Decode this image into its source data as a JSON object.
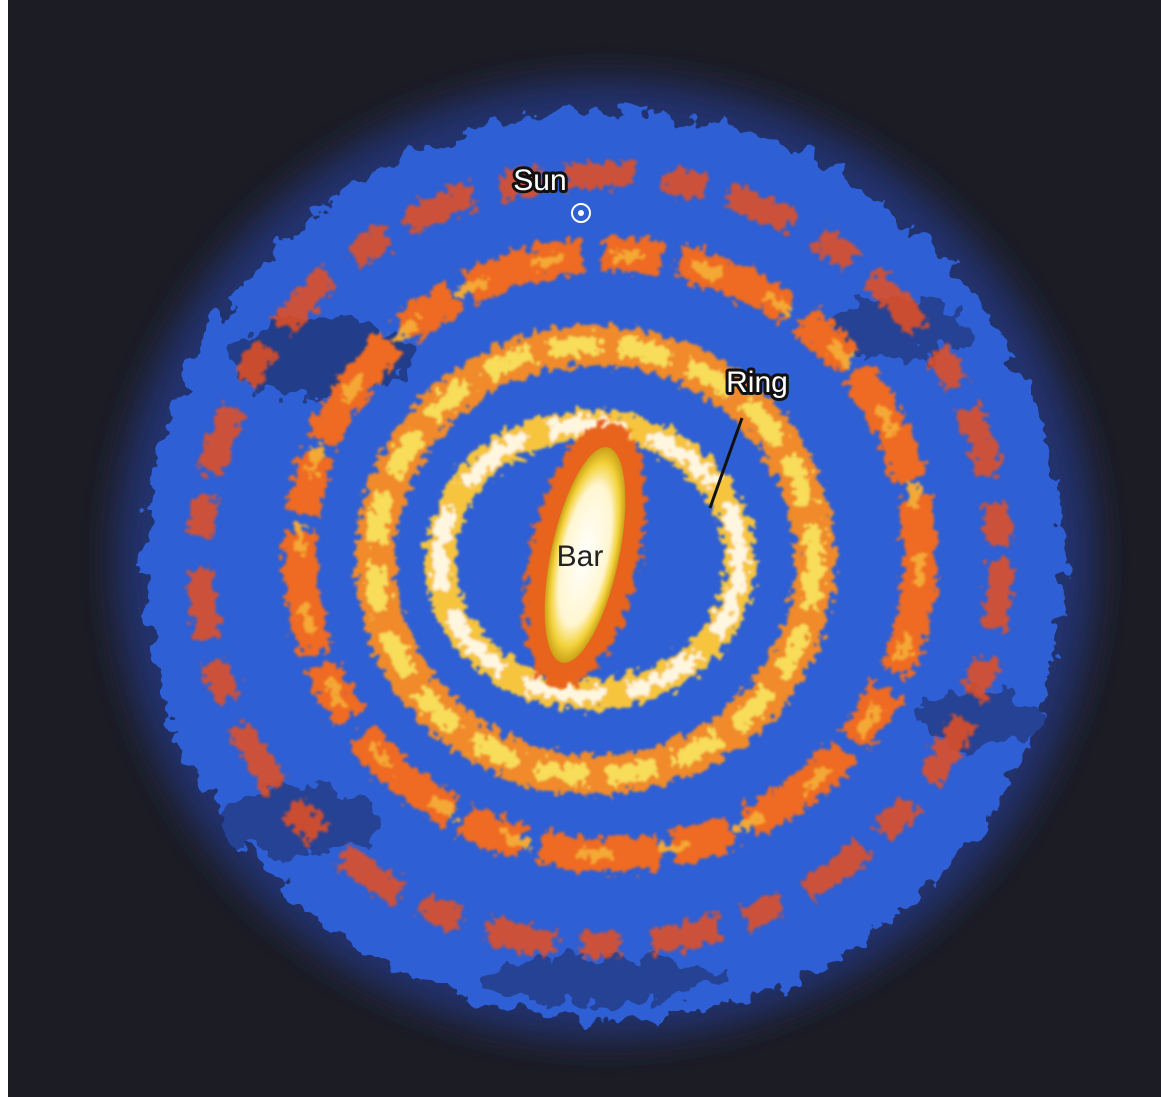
{
  "labels": {
    "sun": "Sun",
    "ring": "Ring",
    "bar": "Bar"
  }
}
